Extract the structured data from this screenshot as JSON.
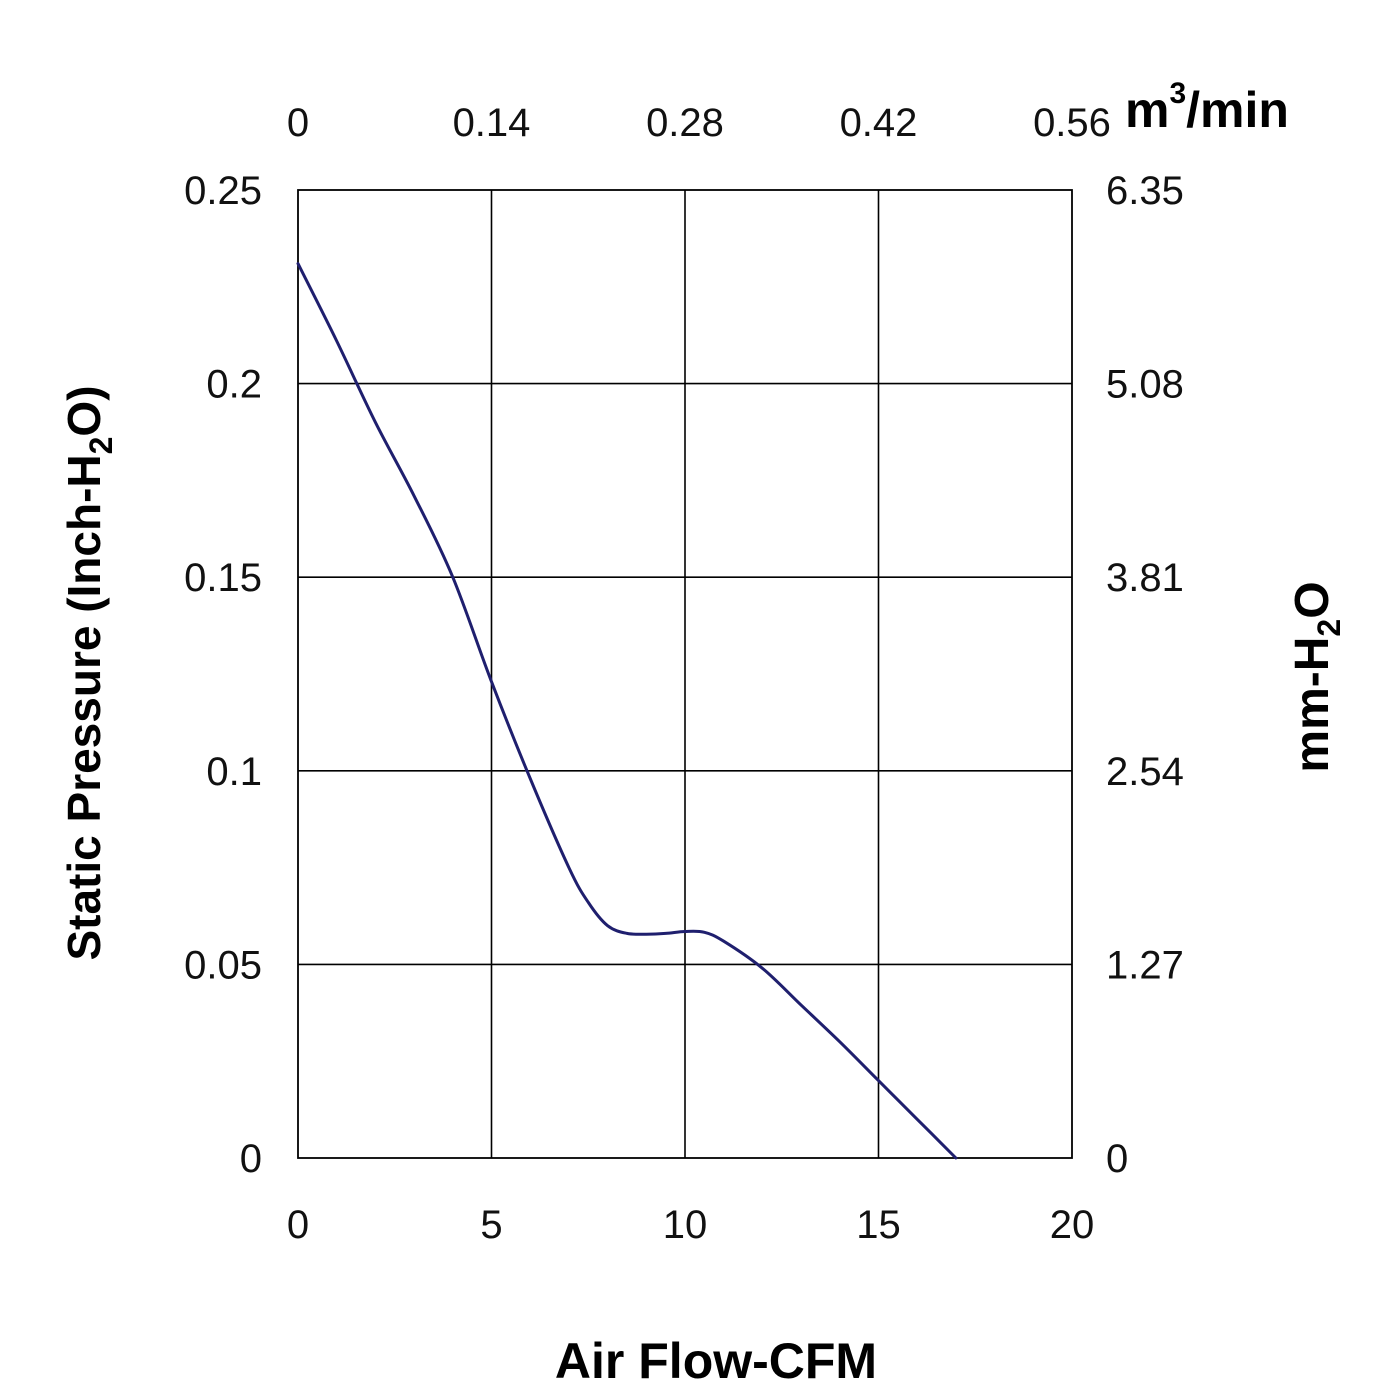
{
  "chart_data": {
    "type": "line",
    "colors": {
      "curve": "#1f1f6e",
      "grid": "#000000"
    },
    "grid": true,
    "xlabel": "Air Flow-CFM",
    "ylabel_left": {
      "main": "Static Pressure (Inch-H",
      "sub": "2",
      "end": "O)"
    },
    "ylabel_right": {
      "main": "mm-H",
      "sub": "2",
      "end": "O"
    },
    "xlabel_top": {
      "main": "m",
      "sup": "3",
      "end": "/min"
    },
    "x_axis": {
      "range": [
        0,
        20
      ],
      "ticks": [
        "0",
        "5",
        "10",
        "15",
        "20"
      ]
    },
    "x_axis_top": {
      "range": [
        0,
        0.56
      ],
      "ticks": [
        "0",
        "0.14",
        "0.28",
        "0.42",
        "0.56"
      ]
    },
    "y_axis_left": {
      "range": [
        0,
        0.25
      ],
      "ticks": [
        "0",
        "0.05",
        "0.1",
        "0.15",
        "0.2",
        "0.25"
      ]
    },
    "y_axis_right": {
      "range": [
        0,
        6.35
      ],
      "ticks": [
        "0",
        "1.27",
        "2.54",
        "3.81",
        "5.08",
        "6.35"
      ]
    },
    "series": [
      {
        "x": [
          0,
          1,
          2,
          3,
          4,
          5,
          6,
          7,
          7.5,
          8,
          8.5,
          9,
          9.5,
          10,
          10.5,
          11,
          12,
          13,
          14,
          15,
          16,
          17
        ],
        "y": [
          0.231,
          0.211,
          0.19,
          0.171,
          0.15,
          0.123,
          0.098,
          0.075,
          0.066,
          0.06,
          0.058,
          0.0578,
          0.058,
          0.0585,
          0.0583,
          0.056,
          0.049,
          0.0395,
          0.03,
          0.02,
          0.01,
          0.0
        ]
      }
    ]
  }
}
